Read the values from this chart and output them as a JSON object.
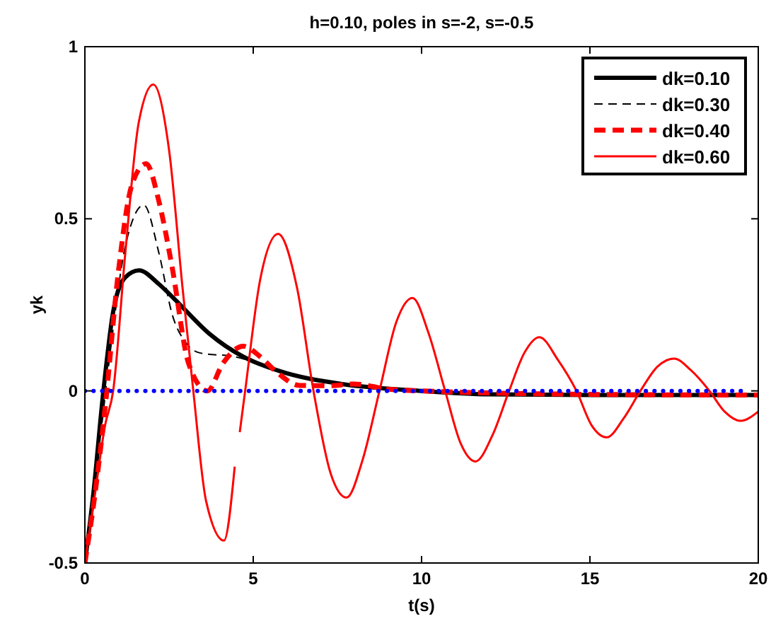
{
  "chart_data": {
    "type": "line",
    "title": "h=0.10, poles in s=-2, s=-0.5",
    "xlabel": "t(s)",
    "ylabel": "yk",
    "xlim": [
      0,
      20
    ],
    "ylim": [
      -0.5,
      1
    ],
    "xticks": [
      0,
      5,
      10,
      15,
      20
    ],
    "yticks": [
      -0.5,
      0,
      0.5,
      1
    ],
    "grid": false,
    "legend": "top right",
    "series": [
      {
        "name": "dk=0.10",
        "color": "#000000",
        "line_style": "solid",
        "x": [
          0,
          0.25,
          0.55,
          0.84,
          1.2,
          1.61,
          2.2,
          2.73,
          3.71,
          4.69,
          5.8,
          7.63,
          10,
          12,
          15,
          20
        ],
        "values": [
          -0.5,
          -0.3,
          0,
          0.23,
          0.33,
          0.35,
          0.31,
          0.26,
          0.165,
          0.1,
          0.057,
          0.02,
          0,
          -0.01,
          -0.012,
          -0.012
        ]
      },
      {
        "name": "dk=0.30",
        "color": "#000000",
        "line_style": "dashed",
        "x": [
          0,
          0.5,
          0.8,
          1.2,
          1.75,
          2.2,
          2.6,
          3.0,
          3.43,
          4.41,
          5.8,
          7.63,
          10,
          15,
          20
        ],
        "values": [
          -0.5,
          -0.1,
          0.15,
          0.42,
          0.54,
          0.4,
          0.22,
          0.14,
          0.11,
          0.1,
          0.057,
          0.02,
          0,
          -0.012,
          -0.012
        ]
      },
      {
        "name": "dk=0.40",
        "color": "#ff0000",
        "line_style": "dashed",
        "x": [
          0,
          0.3,
          0.6,
          1.0,
          1.4,
          1.82,
          2.2,
          2.59,
          3.08,
          3.64,
          4.1,
          4.7,
          5.2,
          5.67,
          6.37,
          7.2,
          8,
          9,
          10,
          15,
          20
        ],
        "values": [
          -0.5,
          -0.3,
          -0.05,
          0.35,
          0.6,
          0.66,
          0.55,
          0.36,
          0.08,
          0,
          0.08,
          0.13,
          0.1,
          0.057,
          0.016,
          0.015,
          0.02,
          0.005,
          0,
          -0.01,
          -0.012
        ]
      },
      {
        "name": "dk=0.60",
        "color": "#ff0000",
        "line_style": "solid",
        "x": [
          0,
          0.3,
          0.6,
          0.84,
          1.2,
          1.6,
          2.03,
          2.5,
          2.9,
          3.22,
          3.6,
          4.13,
          4.45,
          4.52,
          4.6,
          4.76,
          5.2,
          5.74,
          6.3,
          6.79,
          7.3,
          7.77,
          8.25,
          8.75,
          9.25,
          9.73,
          10.2,
          10.7,
          11.15,
          11.6,
          12.1,
          12.6,
          13.05,
          13.5,
          14.05,
          14.6,
          15.05,
          15.5,
          16,
          16.5,
          17,
          17.5,
          18,
          18.55,
          19,
          19.47,
          20
        ],
        "values": [
          -0.5,
          -0.3,
          -0.1,
          0,
          0.4,
          0.78,
          0.89,
          0.7,
          0.3,
          0,
          -0.32,
          -0.435,
          -0.22,
          null,
          -0.12,
          0,
          0.32,
          0.456,
          0.3,
          0,
          -0.24,
          -0.31,
          -0.2,
          0,
          0.2,
          0.27,
          0.17,
          0,
          -0.15,
          -0.205,
          -0.13,
          0,
          0.11,
          0.156,
          0.09,
          0,
          -0.1,
          -0.135,
          -0.08,
          0,
          0.07,
          0.094,
          0.06,
          0,
          -0.06,
          -0.087,
          -0.06
        ]
      },
      {
        "color": "#0000ff",
        "line_style": "dotted",
        "x": [
          0,
          19.5
        ],
        "values": [
          0,
          0
        ]
      }
    ]
  }
}
